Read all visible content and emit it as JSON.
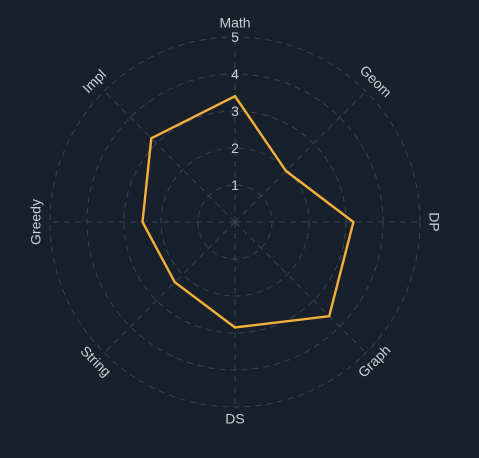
{
  "chart_data": {
    "type": "radar",
    "categories": [
      "Math",
      "Geom",
      "DP",
      "Graph",
      "DS",
      "String",
      "Greedy",
      "Impl"
    ],
    "series": [
      {
        "values": [
          3.4,
          1.95,
          3.2,
          3.6,
          2.85,
          2.3,
          2.5,
          3.2
        ]
      }
    ],
    "rmax": 5,
    "ticks": [
      "1",
      "2",
      "3",
      "4",
      "5"
    ],
    "grid": true,
    "colors": {
      "background": "#17202b",
      "grid": "#3a4452",
      "series": "#f2b13a",
      "text": "#c9cfd6"
    }
  }
}
